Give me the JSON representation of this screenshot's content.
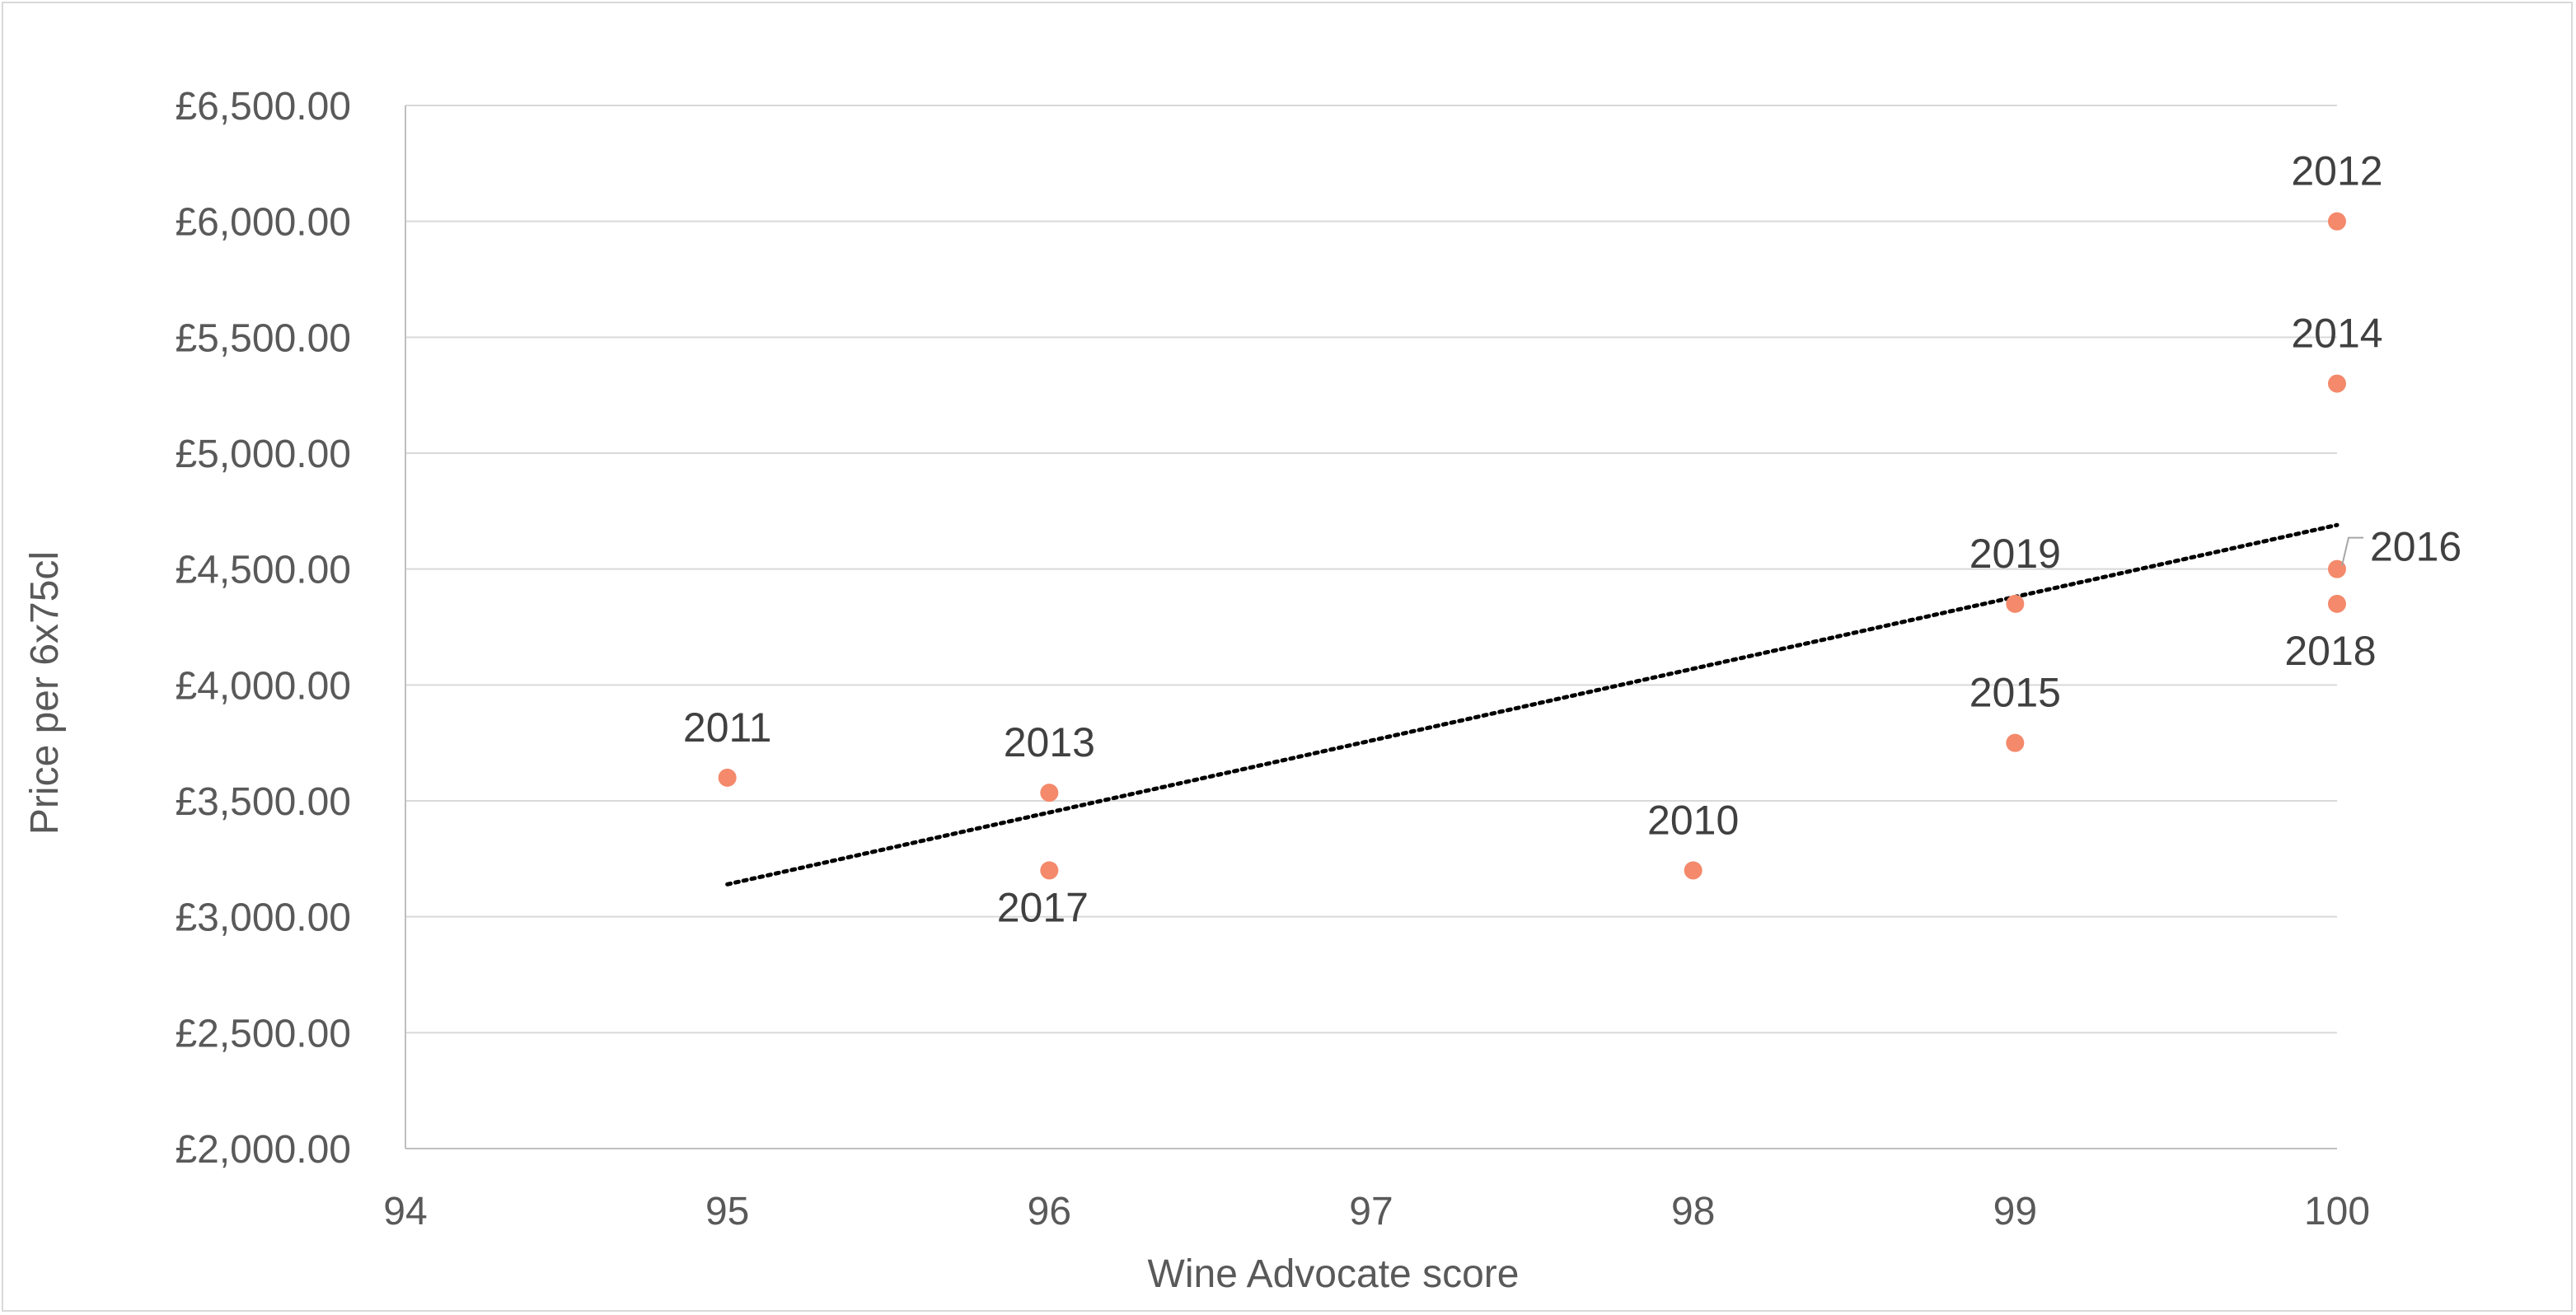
{
  "chart_data": {
    "type": "scatter",
    "xlabel": "Wine Advocate score",
    "ylabel": "Price per 6x75cl",
    "xlim": [
      94,
      100
    ],
    "ylim": [
      2000,
      6500
    ],
    "x_ticks": [
      "94",
      "95",
      "96",
      "97",
      "98",
      "99",
      "100"
    ],
    "y_ticks": [
      "£2,000.00",
      "£2,500.00",
      "£3,000.00",
      "£3,500.00",
      "£4,000.00",
      "£4,500.00",
      "£5,000.00",
      "£5,500.00",
      "£6,000.00",
      "£6,500.00"
    ],
    "grid": "horizontal",
    "marker_color": "#F4896B",
    "points": [
      {
        "label": "2010",
        "x": 98,
        "y": 3200
      },
      {
        "label": "2011",
        "x": 95,
        "y": 3600
      },
      {
        "label": "2012",
        "x": 100,
        "y": 6000
      },
      {
        "label": "2013",
        "x": 96,
        "y": 3535
      },
      {
        "label": "2014",
        "x": 100,
        "y": 5300
      },
      {
        "label": "2015",
        "x": 99,
        "y": 3750
      },
      {
        "label": "2016",
        "x": 100,
        "y": 4500
      },
      {
        "label": "2017",
        "x": 96,
        "y": 3200
      },
      {
        "label": "2018",
        "x": 100,
        "y": 4350
      },
      {
        "label": "2019",
        "x": 99,
        "y": 4350
      }
    ],
    "trendline": {
      "style": "dotted",
      "color": "#000000",
      "start": {
        "x": 95,
        "y": 3140
      },
      "end": {
        "x": 100,
        "y": 4690
      }
    }
  }
}
